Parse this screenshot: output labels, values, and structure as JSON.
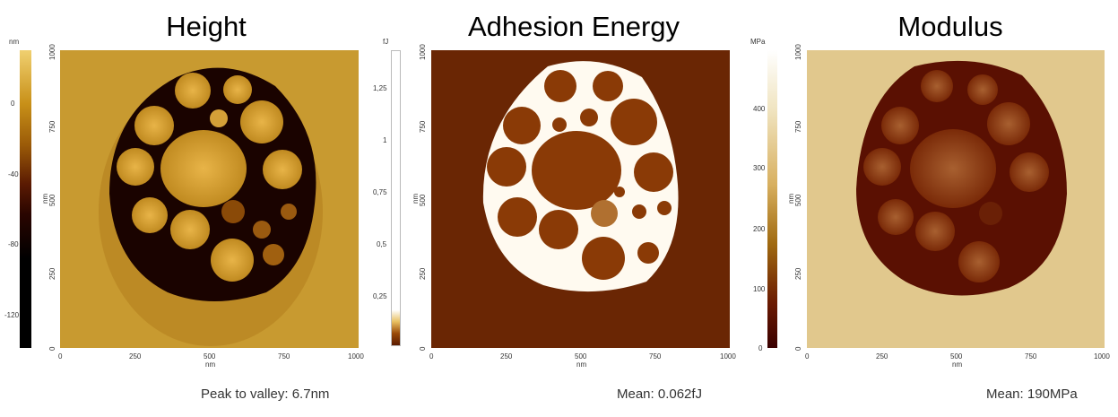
{
  "panels": [
    {
      "title": "Height",
      "colorbar_unit": "nm",
      "colorbar_ticks": [
        "0",
        "-40",
        "-80",
        "-120"
      ],
      "axis_ticks": [
        "0",
        "250",
        "500",
        "750",
        "1000"
      ],
      "axis_ticks_y": [
        "0",
        "250",
        "500",
        "750",
        "1000"
      ],
      "x_unit": "nm",
      "y_unit": "nm",
      "caption": "Peak to valley: 6.7nm",
      "colors": [
        "#f0d070",
        "#c08a10",
        "#7a3a05",
        "#2a0800",
        "#000000"
      ]
    },
    {
      "title": "Adhesion Energy",
      "colorbar_unit": "fJ",
      "colorbar_ticks": [
        "1,25",
        "1",
        "0,75",
        "0,5",
        "0,25"
      ],
      "axis_ticks": [
        "0",
        "250",
        "500",
        "750",
        "1000"
      ],
      "axis_ticks_y": [
        "0",
        "250",
        "500",
        "750",
        "1000"
      ],
      "x_unit": "nm",
      "y_unit": "nm",
      "caption": "Mean: 0.062fJ",
      "colors": [
        "#ffffff",
        "#e8c060",
        "#8a3a05",
        "#5a1a00"
      ]
    },
    {
      "title": "Modulus",
      "colorbar_unit": "MPa",
      "colorbar_ticks": [
        "400",
        "300",
        "200",
        "100",
        "0"
      ],
      "axis_ticks": [
        "0",
        "250",
        "500",
        "750",
        "1000"
      ],
      "axis_ticks_y": [
        "0",
        "250",
        "500",
        "750",
        "1000"
      ],
      "x_unit": "nm",
      "y_unit": "nm",
      "caption": "Mean: 190MPa",
      "colors": [
        "#ffffff",
        "#e8d08a",
        "#b07a10",
        "#6a1a00",
        "#4a0500"
      ]
    }
  ]
}
